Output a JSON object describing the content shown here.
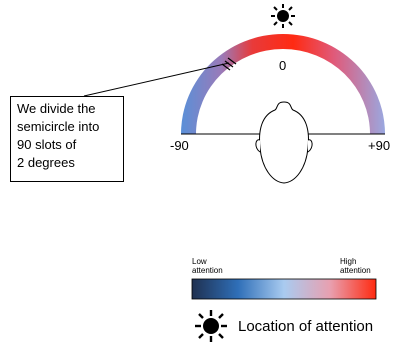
{
  "callout": {
    "lines": [
      "We divide the",
      "semicircle into",
      "90 slots of",
      "2 degrees"
    ]
  },
  "angle_labels": {
    "center": "0",
    "left": "-90",
    "right": "+90"
  },
  "colorbar": {
    "low_label_1": "Low",
    "low_label_2": "attention",
    "high_label_1": "High",
    "high_label_2": "attention",
    "stops": [
      "#1f3050",
      "#2f6fb8",
      "#a9cbf0",
      "#e8a0b0",
      "#ff2a10"
    ]
  },
  "legend": {
    "label": "Location of attention",
    "icon": "sun-icon"
  },
  "arc_colors": {
    "edge": "#5a90d8",
    "mid": "#c03a6a",
    "top": "#ff2a12"
  }
}
